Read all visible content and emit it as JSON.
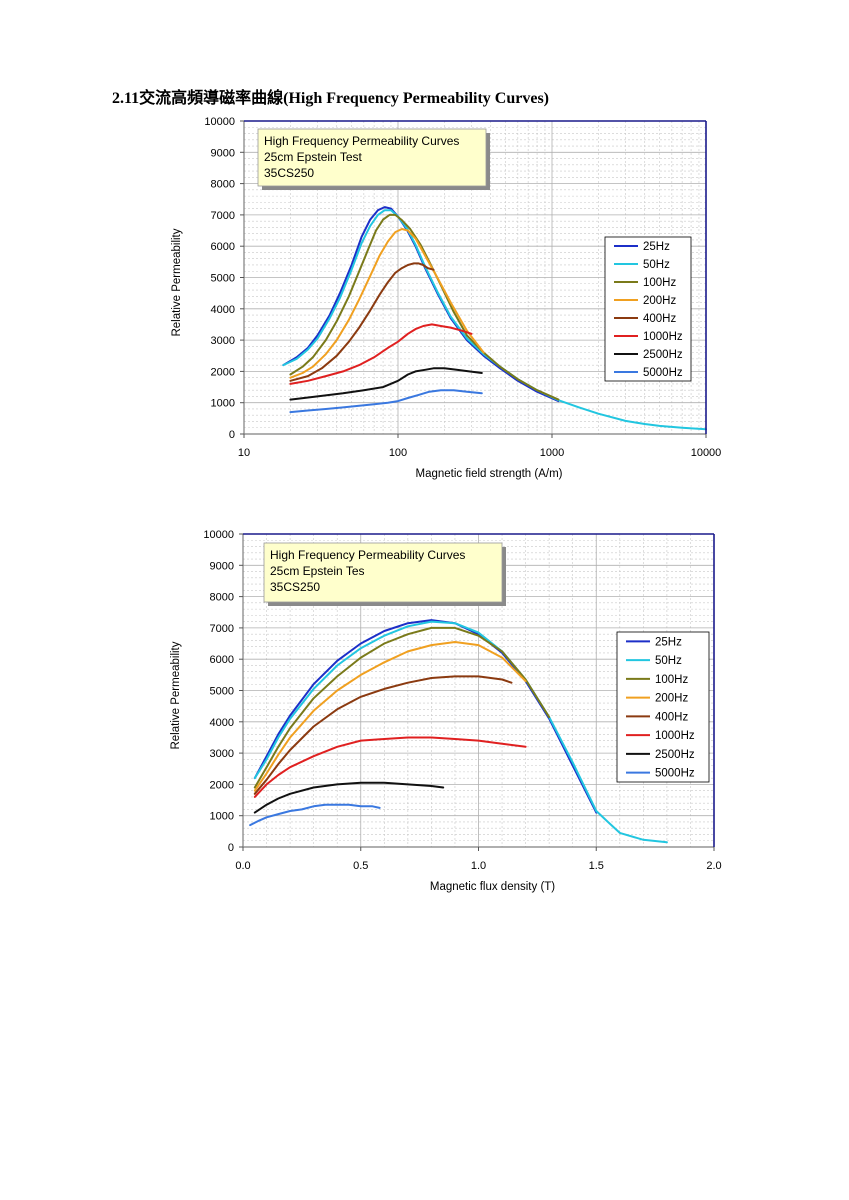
{
  "page": {
    "title": "2.11交流高頻導磁率曲線(High Frequency Permeability Curves)"
  },
  "chart_data": [
    {
      "type": "line",
      "xscale": "log",
      "xlim": [
        10,
        10000
      ],
      "ylim": [
        0,
        10000
      ],
      "xlabel": "Magnetic field strength (A/m)",
      "ylabel": "Relative Permeability",
      "xticks": [
        "10",
        "100",
        "1000",
        "10000"
      ],
      "yticks": [
        "0",
        "1000",
        "2000",
        "3000",
        "4000",
        "5000",
        "6000",
        "7000",
        "8000",
        "9000",
        "10000"
      ],
      "note": [
        "High Frequency Permeability Curves",
        "25cm Epstein Test",
        "35CS250"
      ],
      "legend_position": "right",
      "grid": true,
      "series": [
        {
          "name": "25Hz",
          "color": "#1c2fc8",
          "x": [
            18,
            22,
            26,
            30,
            36,
            42,
            50,
            58,
            66,
            74,
            82,
            90,
            100,
            115,
            130,
            150,
            180,
            220,
            280,
            360,
            460,
            600,
            800,
            1100
          ],
          "y": [
            2200,
            2450,
            2750,
            3150,
            3800,
            4500,
            5400,
            6300,
            6850,
            7150,
            7250,
            7200,
            6950,
            6500,
            6000,
            5300,
            4500,
            3700,
            3000,
            2500,
            2100,
            1700,
            1350,
            1050
          ]
        },
        {
          "name": "50Hz",
          "color": "#22c6e0",
          "x": [
            18,
            22,
            26,
            30,
            36,
            42,
            50,
            58,
            66,
            74,
            82,
            90,
            100,
            115,
            130,
            150,
            180,
            220,
            280,
            360,
            460,
            600,
            800,
            1100,
            1500,
            2000,
            3000,
            4000,
            5000,
            7000,
            10000
          ],
          "y": [
            2200,
            2400,
            2700,
            3050,
            3700,
            4350,
            5250,
            6100,
            6650,
            7000,
            7150,
            7150,
            6950,
            6550,
            6050,
            5350,
            4550,
            3750,
            3050,
            2550,
            2150,
            1750,
            1400,
            1080,
            850,
            650,
            420,
            320,
            260,
            200,
            150
          ]
        },
        {
          "name": "100Hz",
          "color": "#7a7a1a",
          "x": [
            20,
            24,
            28,
            34,
            40,
            48,
            56,
            64,
            72,
            80,
            88,
            96,
            105,
            120,
            140,
            160,
            190,
            230,
            280,
            360,
            460,
            600,
            800,
            1100
          ],
          "y": [
            1900,
            2150,
            2450,
            3000,
            3600,
            4400,
            5200,
            5900,
            6500,
            6850,
            7000,
            7000,
            6850,
            6550,
            6050,
            5500,
            4750,
            3900,
            3150,
            2600,
            2150,
            1750,
            1400,
            1100
          ]
        },
        {
          "name": "200Hz",
          "color": "#f0a020",
          "x": [
            20,
            24,
            28,
            34,
            40,
            48,
            56,
            66,
            76,
            86,
            96,
            106,
            116,
            130,
            150,
            180,
            220,
            280,
            360
          ],
          "y": [
            1800,
            1950,
            2150,
            2550,
            3000,
            3650,
            4300,
            5050,
            5700,
            6150,
            6450,
            6550,
            6500,
            6250,
            5700,
            5000,
            4200,
            3300,
            2600
          ]
        },
        {
          "name": "400Hz",
          "color": "#8b3a10",
          "x": [
            20,
            26,
            32,
            40,
            48,
            56,
            66,
            76,
            86,
            96,
            106,
            116,
            126,
            136,
            146,
            156,
            170
          ],
          "y": [
            1700,
            1850,
            2100,
            2500,
            2950,
            3400,
            3950,
            4450,
            4850,
            5150,
            5300,
            5400,
            5450,
            5450,
            5400,
            5300,
            5250
          ]
        },
        {
          "name": "1000Hz",
          "color": "#e02020",
          "x": [
            20,
            26,
            34,
            44,
            56,
            70,
            86,
            100,
            116,
            130,
            146,
            166,
            190,
            220,
            260,
            300
          ],
          "y": [
            1600,
            1700,
            1850,
            2000,
            2200,
            2450,
            2750,
            2950,
            3200,
            3350,
            3450,
            3500,
            3450,
            3400,
            3300,
            3200
          ]
        },
        {
          "name": "2500Hz",
          "color": "#111111",
          "x": [
            20,
            30,
            44,
            60,
            80,
            100,
            116,
            130,
            150,
            170,
            200,
            240,
            290,
            350
          ],
          "y": [
            1100,
            1200,
            1300,
            1400,
            1500,
            1700,
            1900,
            2000,
            2050,
            2100,
            2100,
            2050,
            2000,
            1950
          ]
        },
        {
          "name": "5000Hz",
          "color": "#3a78e0",
          "x": [
            20,
            26,
            34,
            44,
            56,
            70,
            86,
            100,
            116,
            136,
            160,
            190,
            230,
            280,
            350
          ],
          "y": [
            700,
            750,
            800,
            850,
            900,
            950,
            1000,
            1050,
            1150,
            1250,
            1350,
            1400,
            1400,
            1350,
            1300
          ]
        }
      ]
    },
    {
      "type": "line",
      "xlim": [
        0,
        2
      ],
      "ylim": [
        0,
        10000
      ],
      "xlabel": "Magnetic flux density (T)",
      "ylabel": "Relative Permeability",
      "xticks": [
        "0.0",
        "0.5",
        "1.0",
        "1.5",
        "2.0"
      ],
      "yticks": [
        "0",
        "1000",
        "2000",
        "3000",
        "4000",
        "5000",
        "6000",
        "7000",
        "8000",
        "9000",
        "10000"
      ],
      "note": [
        "High Frequency Permeability Curves",
        "25cm Epstein Tes",
        "35CS250"
      ],
      "legend_position": "right",
      "grid": true,
      "series": [
        {
          "name": "25Hz",
          "color": "#1c2fc8",
          "x": [
            0.05,
            0.1,
            0.15,
            0.2,
            0.3,
            0.4,
            0.5,
            0.6,
            0.7,
            0.8,
            0.9,
            1.0,
            1.1,
            1.2,
            1.3,
            1.4,
            1.5
          ],
          "y": [
            2200,
            2900,
            3600,
            4200,
            5200,
            5950,
            6500,
            6900,
            7150,
            7250,
            7150,
            6800,
            6200,
            5300,
            4100,
            2600,
            1100
          ]
        },
        {
          "name": "50Hz",
          "color": "#22c6e0",
          "x": [
            0.05,
            0.1,
            0.15,
            0.2,
            0.3,
            0.4,
            0.5,
            0.6,
            0.7,
            0.8,
            0.9,
            1.0,
            1.1,
            1.2,
            1.3,
            1.4,
            1.5,
            1.55,
            1.6,
            1.7,
            1.8
          ],
          "y": [
            2200,
            2800,
            3500,
            4100,
            5050,
            5800,
            6350,
            6750,
            7050,
            7200,
            7150,
            6850,
            6250,
            5350,
            4150,
            2700,
            1150,
            800,
            450,
            230,
            150
          ]
        },
        {
          "name": "100Hz",
          "color": "#7a7a1a",
          "x": [
            0.05,
            0.1,
            0.15,
            0.2,
            0.3,
            0.4,
            0.5,
            0.6,
            0.7,
            0.8,
            0.9,
            1.0,
            1.1,
            1.2,
            1.3
          ],
          "y": [
            1900,
            2550,
            3200,
            3800,
            4750,
            5450,
            6050,
            6500,
            6800,
            7000,
            7000,
            6750,
            6250,
            5350,
            4150
          ]
        },
        {
          "name": "200Hz",
          "color": "#f0a020",
          "x": [
            0.05,
            0.1,
            0.15,
            0.2,
            0.3,
            0.4,
            0.5,
            0.6,
            0.7,
            0.8,
            0.9,
            1.0,
            1.1,
            1.2
          ],
          "y": [
            1800,
            2350,
            2950,
            3500,
            4350,
            5000,
            5500,
            5900,
            6250,
            6450,
            6550,
            6450,
            6050,
            5300
          ]
        },
        {
          "name": "400Hz",
          "color": "#8b3a10",
          "x": [
            0.05,
            0.1,
            0.15,
            0.2,
            0.3,
            0.4,
            0.5,
            0.6,
            0.7,
            0.8,
            0.9,
            1.0,
            1.1,
            1.14
          ],
          "y": [
            1700,
            2150,
            2650,
            3100,
            3850,
            4400,
            4800,
            5050,
            5250,
            5400,
            5450,
            5450,
            5350,
            5250
          ]
        },
        {
          "name": "1000Hz",
          "color": "#e02020",
          "x": [
            0.05,
            0.1,
            0.15,
            0.2,
            0.3,
            0.4,
            0.5,
            0.6,
            0.7,
            0.8,
            0.9,
            1.0,
            1.1,
            1.2
          ],
          "y": [
            1600,
            2000,
            2300,
            2550,
            2900,
            3200,
            3400,
            3450,
            3500,
            3500,
            3450,
            3400,
            3300,
            3200
          ]
        },
        {
          "name": "2500Hz",
          "color": "#111111",
          "x": [
            0.05,
            0.1,
            0.15,
            0.2,
            0.3,
            0.4,
            0.5,
            0.6,
            0.7,
            0.8,
            0.85
          ],
          "y": [
            1100,
            1350,
            1550,
            1700,
            1900,
            2000,
            2050,
            2050,
            2000,
            1950,
            1900
          ]
        },
        {
          "name": "5000Hz",
          "color": "#3a78e0",
          "x": [
            0.03,
            0.07,
            0.1,
            0.15,
            0.2,
            0.25,
            0.3,
            0.35,
            0.4,
            0.45,
            0.5,
            0.55,
            0.58
          ],
          "y": [
            700,
            850,
            950,
            1050,
            1150,
            1200,
            1300,
            1350,
            1350,
            1350,
            1300,
            1300,
            1250
          ]
        }
      ]
    }
  ]
}
